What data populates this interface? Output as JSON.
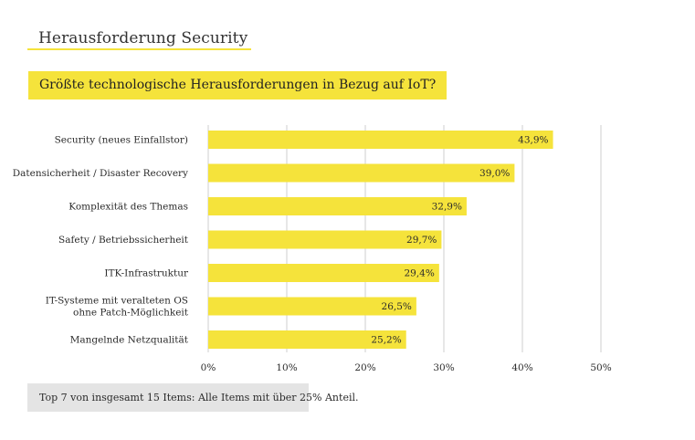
{
  "header": {
    "title": "Herausforderung Security",
    "question": "Größte technologische Herausforderungen in Bezug auf IoT?"
  },
  "colors": {
    "accent": "#f5e33b",
    "bar": "#f5e33b",
    "grid": "#cfcfcf",
    "note_bg": "#e4e4e4",
    "text": "#2b2b2b"
  },
  "chart_data": {
    "type": "bar",
    "orientation": "horizontal",
    "categories": [
      [
        "Security (neues Einfallstor)"
      ],
      [
        "Datensicherheit / Disaster Recovery"
      ],
      [
        "Komplexität des Themas"
      ],
      [
        "Safety / Betriebssicherheit"
      ],
      [
        "ITK-Infrastruktur"
      ],
      [
        "IT-Systeme mit veralteten OS",
        "ohne Patch-Möglichkeit"
      ],
      [
        "Mangelnde Netzqualität"
      ]
    ],
    "values": [
      43.9,
      39.0,
      32.9,
      29.7,
      29.4,
      26.5,
      25.2
    ],
    "value_labels": [
      "43,9%",
      "39,0%",
      "32,9%",
      "29,7%",
      "29,4%",
      "26,5%",
      "25,2%"
    ],
    "xlim": [
      0,
      50
    ],
    "xticks": [
      0,
      10,
      20,
      30,
      40,
      50
    ],
    "xtick_labels": [
      "0%",
      "10%",
      "20%",
      "30%",
      "40%",
      "50%"
    ],
    "grid": true,
    "legend": false
  },
  "footnote": "Top 7 von insgesamt 15 Items: Alle Items mit über 25% Anteil."
}
